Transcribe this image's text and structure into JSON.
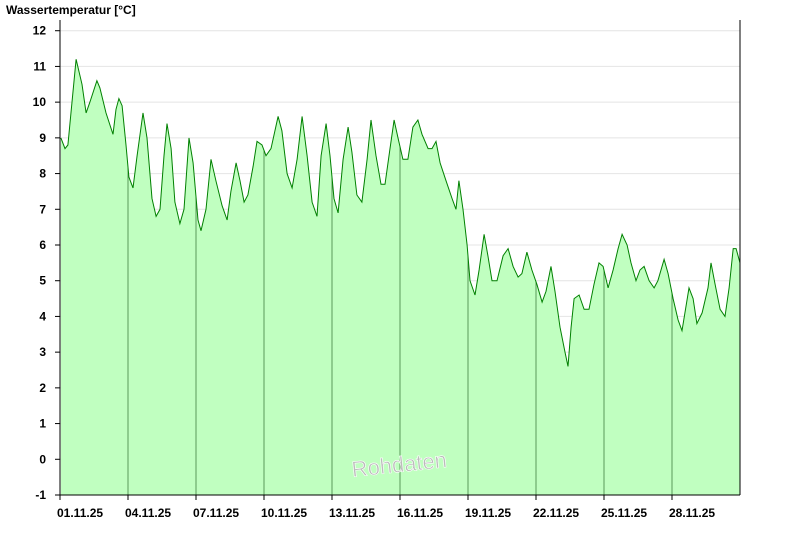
{
  "chart_data": {
    "type": "area",
    "title": "Wassertemperatur [°C]",
    "watermark": "Rohdaten",
    "x": [
      1.04,
      1.22,
      1.35,
      1.53,
      1.71,
      1.97,
      2.15,
      2.32,
      2.63,
      2.76,
      3.03,
      3.34,
      3.47,
      3.6,
      3.74,
      3.91,
      4.04,
      4.22,
      4.4,
      4.66,
      4.84,
      5.06,
      5.24,
      5.41,
      5.59,
      5.72,
      5.9,
      6.07,
      6.29,
      6.47,
      6.69,
      6.87,
      7.09,
      7.22,
      7.44,
      7.66,
      7.88,
      8.15,
      8.37,
      8.54,
      8.77,
      8.94,
      9.12,
      9.29,
      9.52,
      9.69,
      9.91,
      10.09,
      10.31,
      10.62,
      10.79,
      11.02,
      11.24,
      11.46,
      11.68,
      11.9,
      12.12,
      12.34,
      12.52,
      12.74,
      12.91,
      13.09,
      13.27,
      13.49,
      13.71,
      13.88,
      14.1,
      14.32,
      14.55,
      14.72,
      14.94,
      15.16,
      15.34,
      15.56,
      15.74,
      15.91,
      16.13,
      16.35,
      16.57,
      16.79,
      16.97,
      17.24,
      17.41,
      17.59,
      17.77,
      18.03,
      18.3,
      18.47,
      18.6,
      18.78,
      18.96,
      19.09,
      19.31,
      19.49,
      19.71,
      19.88,
      20.06,
      20.28,
      20.55,
      20.77,
      20.99,
      21.21,
      21.38,
      21.6,
      21.82,
      22.04,
      22.27,
      22.44,
      22.66,
      22.84,
      23.06,
      23.28,
      23.41,
      23.55,
      23.68,
      23.9,
      24.12,
      24.34,
      24.56,
      24.78,
      24.96,
      25.18,
      25.4,
      25.62,
      25.8,
      26.02,
      26.19,
      26.41,
      26.59,
      26.77,
      26.99,
      27.21,
      27.38,
      27.65,
      27.83,
      28.05,
      28.27,
      28.44,
      28.62,
      28.75,
      28.93,
      29.1,
      29.33,
      29.59,
      29.72,
      29.9,
      30.12,
      30.34,
      30.52,
      30.7,
      30.83,
      31.0
    ],
    "series": [
      {
        "name": "Wassertemperatur",
        "color": "#008000",
        "fill": "#c0ffc0",
        "values": [
          9.0,
          8.7,
          8.8,
          10.0,
          11.2,
          10.5,
          9.7,
          10.0,
          10.6,
          10.4,
          9.7,
          9.1,
          9.8,
          10.1,
          9.9,
          8.8,
          7.9,
          7.6,
          8.5,
          9.7,
          9.0,
          7.3,
          6.8,
          7.0,
          8.5,
          9.4,
          8.7,
          7.2,
          6.6,
          7.0,
          9.0,
          8.3,
          6.7,
          6.4,
          7.0,
          8.4,
          7.8,
          7.1,
          6.7,
          7.5,
          8.3,
          7.8,
          7.2,
          7.4,
          8.2,
          8.9,
          8.8,
          8.5,
          8.7,
          9.6,
          9.2,
          8.0,
          7.6,
          8.4,
          9.6,
          8.5,
          7.2,
          6.8,
          8.5,
          9.4,
          8.5,
          7.3,
          6.9,
          8.4,
          9.3,
          8.6,
          7.4,
          7.2,
          8.4,
          9.5,
          8.5,
          7.7,
          7.7,
          8.7,
          9.5,
          9.0,
          8.4,
          8.4,
          9.3,
          9.5,
          9.1,
          8.7,
          8.7,
          8.9,
          8.3,
          7.8,
          7.3,
          7.0,
          7.8,
          7.0,
          6.0,
          5.0,
          4.6,
          5.3,
          6.3,
          5.7,
          5.0,
          5.0,
          5.7,
          5.9,
          5.4,
          5.1,
          5.2,
          5.8,
          5.3,
          4.9,
          4.4,
          4.7,
          5.4,
          4.7,
          3.7,
          3.0,
          2.6,
          3.7,
          4.5,
          4.6,
          4.2,
          4.2,
          4.9,
          5.5,
          5.4,
          4.8,
          5.3,
          5.9,
          6.3,
          6.0,
          5.5,
          5.0,
          5.3,
          5.4,
          5.0,
          4.8,
          5.0,
          5.6,
          5.2,
          4.5,
          3.9,
          3.6,
          4.3,
          4.8,
          4.5,
          3.8,
          4.1,
          4.8,
          5.5,
          4.9,
          4.2,
          4.0,
          4.8,
          5.9,
          5.9,
          5.5
        ]
      }
    ],
    "xlim": [
      1,
      31
    ],
    "xticks": [
      {
        "value": 1,
        "label": "01.11.25"
      },
      {
        "value": 4,
        "label": "04.11.25"
      },
      {
        "value": 7,
        "label": "07.11.25"
      },
      {
        "value": 10,
        "label": "10.11.25"
      },
      {
        "value": 13,
        "label": "13.11.25"
      },
      {
        "value": 16,
        "label": "16.11.25"
      },
      {
        "value": 19,
        "label": "19.11.25"
      },
      {
        "value": 22,
        "label": "22.11.25"
      },
      {
        "value": 25,
        "label": "25.11.25"
      },
      {
        "value": 28,
        "label": "28.11.25"
      }
    ],
    "ylim": [
      -1,
      12.3
    ],
    "yticks": [
      -1,
      0,
      1,
      2,
      3,
      4,
      5,
      6,
      7,
      8,
      9,
      10,
      11,
      12
    ],
    "grid": true
  }
}
